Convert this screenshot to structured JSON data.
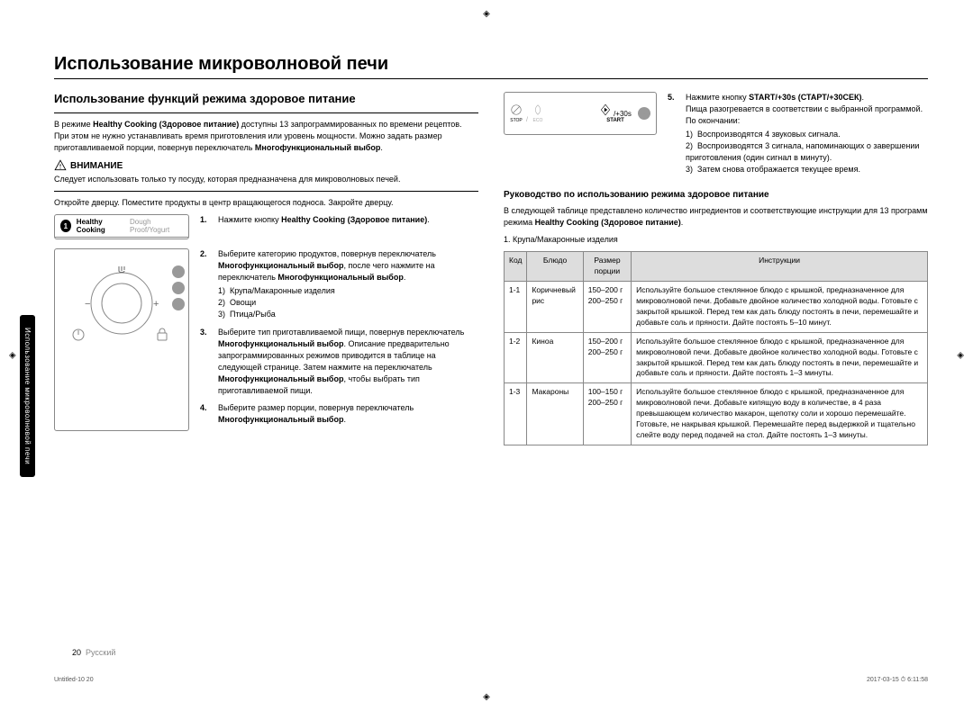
{
  "page_title": "Использование микроволновой печи",
  "side_tab": "Использование микроволновой печи",
  "section_title": "Использование функций режима здоровое питание",
  "intro_p": "В режиме Healthy Cooking (Здоровое питание) доступны 13 запрограммированных по времени рецептов. При этом не нужно устанавливать время приготовления или уровень мощности. Можно задать размер приготавливаемой порции, повернув переключатель Многофункциональный выбор.",
  "bold_mode": "Healthy Cooking (Здоровое питание)",
  "warn_label": "ВНИМАНИЕ",
  "warn_text": "Следует использовать только ту посуду, которая предназначена для микроволновых печей.",
  "open_text": "Откройте дверцу. Поместите продукты в центр вращающегося подноса. Закройте дверцу.",
  "panel1": {
    "tab_active": "Healthy Cooking",
    "tab_inactive": "Dough Proof/Yogurt"
  },
  "step1": {
    "n": "1.",
    "text": "Нажмите кнопку Healthy Cooking (Здоровое питание)."
  },
  "step2": {
    "n": "2.",
    "text": "Выберите категорию продуктов, повернув переключатель Многофункциональный выбор, после чего нажмите на переключатель Многофункциональный выбор.",
    "items": [
      "Крупа/Макаронные изделия",
      "Овощи",
      "Птица/Рыба"
    ]
  },
  "step3": {
    "n": "3.",
    "text": "Выберите тип приготавливаемой пищи, повернув переключатель Многофункциональный выбор. Описание предварительно запрограммированных режимов приводится в таблице на следующей странице. Затем нажмите на переключатель Многофункциональный выбор, чтобы выбрать тип приготавливаемой пищи."
  },
  "step4": {
    "n": "4.",
    "text": "Выберите размер порции, повернув переключатель Многофункциональный выбор."
  },
  "lcd": {
    "stop": "STOP",
    "eco": "ECO",
    "start": "START",
    "plus30": "/+30s"
  },
  "step5": {
    "n": "5.",
    "lead": "Нажмите кнопку START/+30s (СТАРТ/+30СЕК).",
    "p": "Пища разогревается в соответствии с выбранной программой. По окончании:",
    "items": [
      "Воспроизводятся 4 звуковых сигнала.",
      "Воспроизводятся 3 сигнала, напоминающих о завершении приготовления (один сигнал в минуту).",
      "Затем снова отображается текущее время."
    ]
  },
  "guide_title": "Руководство по использованию режима здоровое питание",
  "guide_p": "В следующей таблице представлено количество ингредиентов и соответствующие инструкции для 13 программ режима Healthy Cooking (Здоровое питание).",
  "table_caption": "1. Крупа/Макаронные изделия",
  "table": {
    "headers": [
      "Код",
      "Блюдо",
      "Размер порции",
      "Инструкции"
    ],
    "rows": [
      {
        "code": "1-1",
        "dish": "Коричневый рис",
        "size": "150–200 г\n200–250 г",
        "instr": "Используйте большое стеклянное блюдо с крышкой, предназначенное для микроволновой печи. Добавьте двойное количество холодной воды. Готовьте с закрытой крышкой. Перед тем как дать блюду постоять в печи, перемешайте и добавьте соль и пряности. Дайте постоять 5–10 минут."
      },
      {
        "code": "1-2",
        "dish": "Киноа",
        "size": "150–200 г\n200–250 г",
        "instr": "Используйте большое стеклянное блюдо с крышкой, предназначенное для микроволновой печи. Добавьте двойное количество холодной воды. Готовьте с закрытой крышкой. Перед тем как дать блюду постоять в печи, перемешайте и добавьте соль и пряности. Дайте постоять 1–3 минуты."
      },
      {
        "code": "1-3",
        "dish": "Макароны",
        "size": "100–150 г\n200–250 г",
        "instr": "Используйте большое стеклянное блюдо с крышкой, предназначенное для микроволновой печи. Добавьте кипящую воду в количестве, в 4 раза превышающем количество макарон, щепотку соли и хорошо перемешайте. Готовьте, не накрывая крышкой. Перемешайте перед выдержкой и тщательно слейте воду перед подачей на стол. Дайте постоять 1–3 минуты."
      }
    ]
  },
  "page_num": "20",
  "page_lang": "Русский",
  "footer_left": "Untitled-10  20",
  "footer_right": "2017-03-15  ⏱ 6:11:58"
}
